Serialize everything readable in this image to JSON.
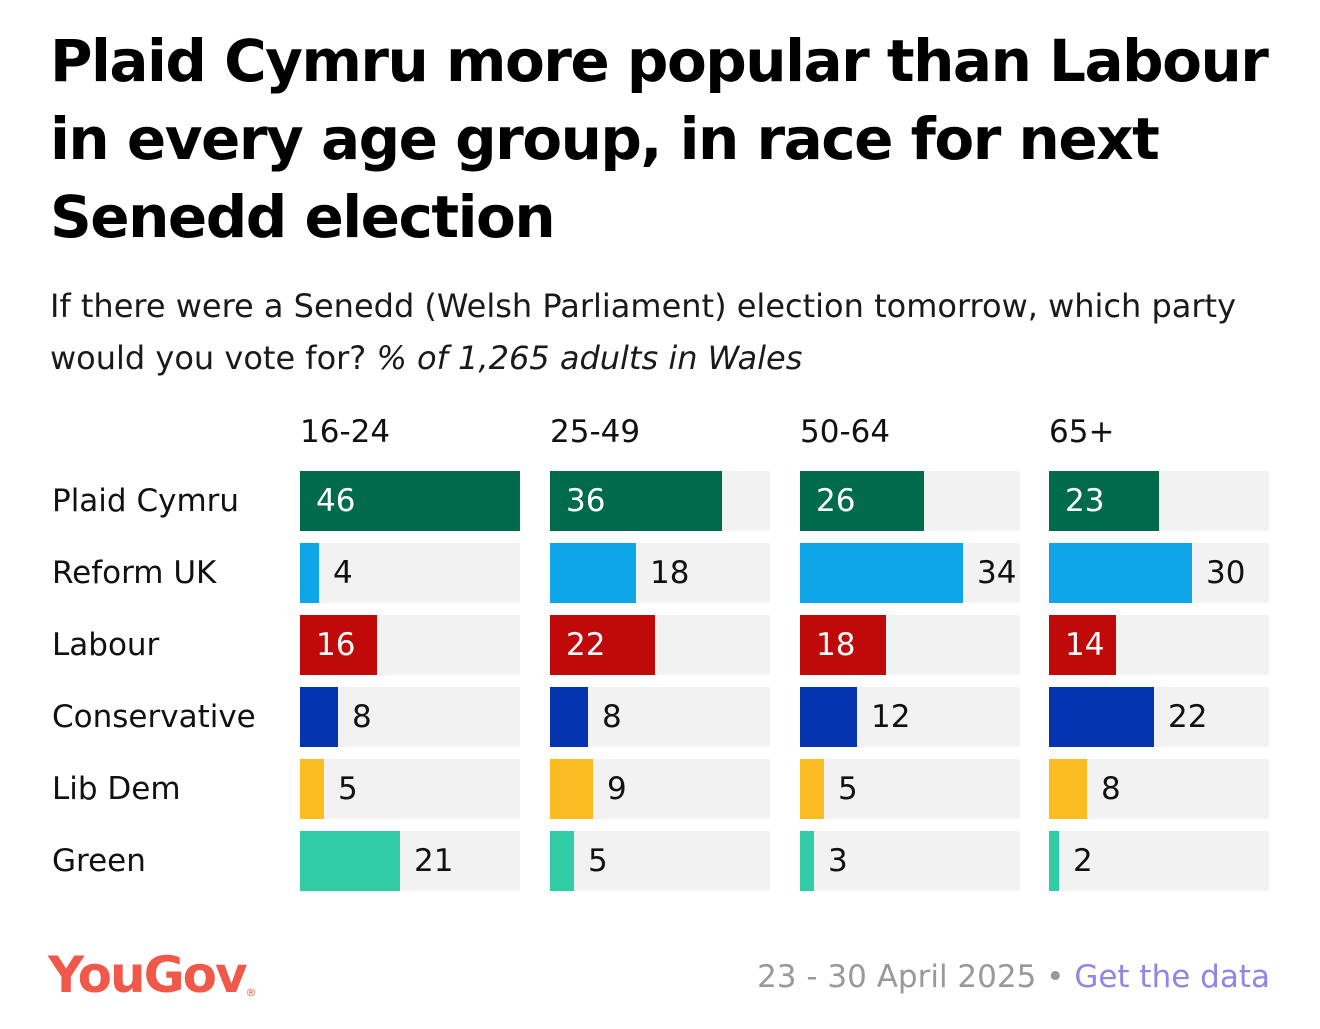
{
  "title": "Plaid Cymru more popular than Labour in every age group, in race for next Senedd election",
  "subtitle_main": "If there were a Senedd (Welsh Parliament) election tomorrow, which party would you vote for?",
  "subtitle_italic": "% of 1,265 adults in Wales",
  "footer": {
    "date": "23 - 30 April 2025",
    "separator": "•",
    "link": "Get the data"
  },
  "logo": {
    "text": "YouGov",
    "reg": "®"
  },
  "colors": {
    "track": "#f2f2f2",
    "dark_text": "#111111",
    "light_text": "#ffffff",
    "logo": "#f0584a",
    "link": "#8f86e8"
  },
  "chart_data": {
    "type": "bar",
    "orientation": "horizontal",
    "layout": "small-multiples",
    "xlim": [
      0,
      46
    ],
    "groups": [
      "16-24",
      "25-49",
      "50-64",
      "65+"
    ],
    "categories": [
      "Plaid Cymru",
      "Reform UK",
      "Labour",
      "Conservative",
      "Lib Dem",
      "Green"
    ],
    "category_colors": [
      "#006b4a",
      "#0ea5e9",
      "#c00a0a",
      "#0534b0",
      "#fbbc21",
      "#31cba6"
    ],
    "value_label_inside": [
      true,
      false,
      true,
      false,
      false,
      false
    ],
    "values": [
      [
        46,
        36,
        26,
        23
      ],
      [
        4,
        18,
        34,
        30
      ],
      [
        16,
        22,
        18,
        14
      ],
      [
        8,
        8,
        12,
        22
      ],
      [
        5,
        9,
        5,
        8
      ],
      [
        21,
        5,
        3,
        2
      ]
    ]
  }
}
